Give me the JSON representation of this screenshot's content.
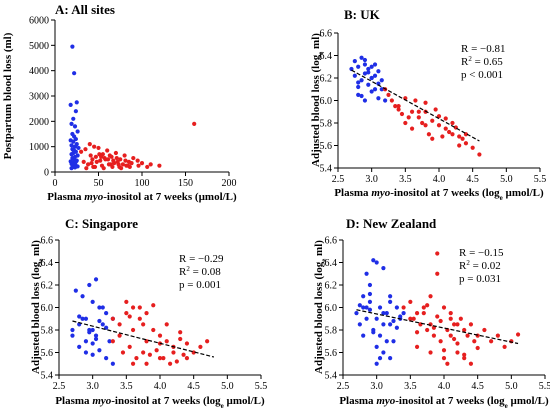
{
  "colors": {
    "group_a": "#1f2ee6",
    "group_b": "#e61f1f",
    "fit_line": "#000000"
  },
  "chart_data": [
    {
      "type": "scatter",
      "title": "A: All sites",
      "xlabel": "Plasma myo-inositol at 7 weeks (µmol/L)",
      "xlabel_parts": [
        "Plasma ",
        "myo",
        "-inositol",
        " at 7 weeks (µmol/L)"
      ],
      "ylabel": "Postpartum blood loss (ml)",
      "ylabel_parts": [
        "Postpartum blood loss (ml)"
      ],
      "xlim": [
        0,
        200
      ],
      "ylim": [
        0,
        6000
      ],
      "xticks": [
        "0",
        "50",
        "100",
        "150",
        "200"
      ],
      "yticks": [
        "0",
        "1000",
        "2000",
        "3000",
        "4000",
        "5000",
        "6000"
      ],
      "stats": [],
      "fit": null,
      "series": [
        {
          "color": "blue",
          "x": [
            20,
            22,
            18,
            25,
            24,
            21,
            19,
            23,
            26,
            20,
            22,
            24,
            18,
            21,
            25,
            19,
            23,
            27,
            20,
            22,
            24,
            21,
            19,
            26,
            23,
            20,
            22,
            25,
            18,
            24,
            21,
            23,
            19,
            22,
            20,
            24,
            26,
            21,
            23,
            19
          ],
          "y": [
            4950,
            3900,
            2650,
            2750,
            2400,
            2100,
            1900,
            1800,
            1600,
            1500,
            1400,
            1300,
            1250,
            1200,
            1100,
            1050,
            1000,
            950,
            900,
            850,
            800,
            750,
            700,
            650,
            600,
            550,
            500,
            450,
            420,
            400,
            380,
            350,
            320,
            300,
            280,
            250,
            220,
            200,
            180,
            150
          ]
        },
        {
          "color": "red",
          "x": [
            30,
            35,
            40,
            45,
            50,
            55,
            60,
            65,
            70,
            75,
            80,
            85,
            90,
            95,
            100,
            110,
            120,
            160,
            38,
            42,
            48,
            52,
            58,
            62,
            68,
            72,
            78,
            82,
            88,
            44,
            54,
            64,
            74,
            84,
            47,
            57,
            67,
            36,
            46,
            56,
            66,
            76,
            86,
            96,
            106,
            41,
            51,
            61,
            71,
            81,
            33,
            43,
            53,
            63,
            73
          ],
          "y": [
            800,
            900,
            1100,
            1000,
            950,
            700,
            850,
            600,
            750,
            500,
            650,
            400,
            550,
            450,
            350,
            300,
            250,
            1900,
            300,
            350,
            400,
            450,
            500,
            300,
            350,
            400,
            300,
            250,
            350,
            200,
            250,
            300,
            200,
            250,
            600,
            550,
            450,
            150,
            200,
            150,
            200,
            150,
            200,
            250,
            200,
            650,
            700,
            500,
            550,
            450,
            400,
            500,
            600,
            650,
            300
          ]
        }
      ]
    },
    {
      "type": "scatter",
      "title": "B: UK",
      "xlabel": "Plasma myo-inositol at 7 weeks (loge µmol/L)",
      "xlabel_parts": [
        "Plasma ",
        "myo",
        "-inositol",
        " at 7 weeks (log",
        "e",
        " µmol/L)"
      ],
      "ylabel": "Adjusted blood loss (loge ml)",
      "ylabel_parts": [
        "Adjusted blood loss (log",
        "e",
        " ml)"
      ],
      "xlim": [
        2.5,
        5.5
      ],
      "ylim": [
        5.4,
        6.6
      ],
      "xticks": [
        "2.5",
        "3.0",
        "3.5",
        "4.0",
        "4.5",
        "5.0",
        "5.5"
      ],
      "yticks": [
        "5.4",
        "5.6",
        "5.8",
        "6.0",
        "6.2",
        "6.4",
        "6.6"
      ],
      "stats": [
        "R = −0.81",
        "R2 = 0.65",
        "p < 0.001"
      ],
      "fit": {
        "x": [
          2.7,
          4.6
        ],
        "y": [
          6.27,
          5.64
        ]
      },
      "series": [
        {
          "color": "blue",
          "x": [
            2.7,
            2.75,
            2.8,
            2.85,
            2.9,
            2.95,
            3.0,
            3.05,
            3.1,
            3.15,
            2.8,
            2.9,
            3.0,
            3.1,
            2.85,
            2.95,
            3.05,
            2.75,
            2.8,
            2.9,
            3.0,
            2.95,
            3.1,
            3.15,
            2.85,
            3.05,
            2.9,
            3.0,
            2.8,
            3.2
          ],
          "y": [
            6.28,
            6.35,
            6.3,
            6.38,
            6.32,
            6.25,
            6.2,
            6.22,
            6.15,
            6.1,
            6.05,
            6.0,
            6.08,
            6.02,
            6.18,
            6.28,
            6.32,
            6.22,
            6.12,
            6.24,
            6.3,
            6.14,
            6.26,
            6.18,
            6.04,
            6.1,
            6.36,
            6.2,
            6.16,
            6.0
          ]
        },
        {
          "color": "red",
          "x": [
            3.2,
            3.3,
            3.4,
            3.5,
            3.6,
            3.7,
            3.8,
            3.9,
            4.0,
            4.1,
            4.2,
            4.3,
            4.4,
            4.5,
            4.6,
            3.35,
            3.55,
            3.75,
            3.95,
            4.15,
            4.35,
            3.45,
            3.65,
            3.85,
            4.05,
            4.25,
            3.25,
            3.5,
            3.8,
            4.1,
            4.4,
            3.6,
            3.9,
            4.2,
            3.7,
            4.0,
            4.3,
            3.4,
            3.8
          ],
          "y": [
            6.1,
            6.0,
            5.95,
            6.02,
            5.9,
            5.85,
            5.9,
            5.82,
            5.78,
            5.75,
            5.7,
            5.68,
            5.62,
            5.58,
            5.52,
            5.95,
            5.85,
            5.8,
            5.92,
            5.72,
            5.66,
            5.88,
            6.0,
            5.7,
            5.68,
            5.76,
            6.05,
            5.8,
            5.98,
            5.84,
            5.7,
            5.75,
            5.66,
            5.8,
            5.9,
            5.86,
            5.6,
            5.92,
            5.78
          ]
        }
      ]
    },
    {
      "type": "scatter",
      "title": "C: Singapore",
      "xlabel": "Plasma myo-inositol at 7 weeks (loge µmol/L)",
      "xlabel_parts": [
        "Plasma ",
        "myo",
        "-inositol",
        " at 7 weeks (log",
        "e",
        " µmol/L)"
      ],
      "ylabel": "Adjusted blood loss (loge ml)",
      "ylabel_parts": [
        "Adjusted blood loss (log",
        "e",
        " ml)"
      ],
      "xlim": [
        2.5,
        5.5
      ],
      "ylim": [
        5.4,
        6.6
      ],
      "xticks": [
        "2.5",
        "3.0",
        "3.5",
        "4.0",
        "4.5",
        "5.0",
        "5.5"
      ],
      "yticks": [
        "5.4",
        "5.6",
        "5.8",
        "6.0",
        "6.2",
        "6.4",
        "6.6"
      ],
      "stats": [
        "R = −0.29",
        "R2 = 0.08",
        "p = 0.001"
      ],
      "fit": {
        "x": [
          2.7,
          4.8
        ],
        "y": [
          5.88,
          5.56
        ]
      },
      "series": [
        {
          "color": "blue",
          "x": [
            2.7,
            2.8,
            2.9,
            3.0,
            3.1,
            3.2,
            3.3,
            2.75,
            2.85,
            2.95,
            3.05,
            3.15,
            3.25,
            2.8,
            2.9,
            3.0,
            3.1,
            3.2,
            2.85,
            2.95,
            3.05,
            3.15,
            2.9,
            3.0,
            3.1,
            2.7,
            3.3,
            2.8,
            3.0,
            3.2,
            2.95,
            3.05
          ],
          "y": [
            5.8,
            5.85,
            5.9,
            6.05,
            6.0,
            5.95,
            5.9,
            6.15,
            6.1,
            5.8,
            5.75,
            5.85,
            5.7,
            5.65,
            5.6,
            5.58,
            5.62,
            5.55,
            5.9,
            6.2,
            6.25,
            6.0,
            5.7,
            5.8,
            5.88,
            5.75,
            5.5,
            5.92,
            5.68,
            5.82,
            5.78,
            5.72
          ]
        },
        {
          "color": "red",
          "x": [
            3.3,
            3.4,
            3.5,
            3.6,
            3.7,
            3.8,
            3.9,
            4.0,
            4.1,
            4.2,
            4.3,
            4.4,
            4.5,
            4.6,
            4.7,
            3.45,
            3.55,
            3.65,
            3.75,
            3.85,
            3.95,
            4.05,
            4.15,
            4.25,
            4.35,
            3.5,
            3.7,
            3.9,
            4.1,
            4.3,
            3.6,
            3.8,
            4.0,
            4.2,
            3.4,
            3.6,
            3.8,
            4.0,
            4.4,
            3.3,
            3.55,
            3.75
          ],
          "y": [
            5.7,
            5.85,
            5.95,
            6.0,
            5.9,
            5.95,
            5.8,
            5.75,
            5.7,
            5.65,
            5.72,
            5.68,
            5.6,
            5.65,
            5.7,
            5.6,
            5.65,
            5.55,
            5.6,
            5.58,
            5.62,
            5.55,
            5.5,
            5.52,
            5.58,
            6.05,
            6.0,
            6.02,
            5.85,
            5.78,
            5.8,
            5.7,
            5.68,
            5.6,
            5.75,
            5.5,
            5.5,
            5.55,
            5.55,
            5.9,
            5.92,
            5.85
          ]
        }
      ]
    },
    {
      "type": "scatter",
      "title": "D: New Zealand",
      "xlabel": "Plasma myo-inositol at 7 weeks (loge µmol/L)",
      "xlabel_parts": [
        "Plasma ",
        "myo",
        "-inositol",
        " at 7 weeks (log",
        "e",
        " µmol/L)"
      ],
      "ylabel": "Adjusted blood loss (loge ml)",
      "ylabel_parts": [
        "Adjusted blood loss (log",
        "e",
        " ml)"
      ],
      "xlim": [
        2.5,
        5.5
      ],
      "ylim": [
        5.4,
        6.6
      ],
      "xticks": [
        "2.5",
        "3.0",
        "3.5",
        "4.0",
        "4.5",
        "5.0",
        "5.5"
      ],
      "yticks": [
        "5.4",
        "5.6",
        "5.8",
        "6.0",
        "6.2",
        "6.4",
        "6.6"
      ],
      "stats": [
        "R = −0.15",
        "R2 = 0.02",
        "p = 0.031"
      ],
      "fit": {
        "x": [
          2.7,
          5.1
        ],
        "y": [
          5.98,
          5.68
        ]
      },
      "series": [
        {
          "color": "blue",
          "x": [
            2.7,
            2.8,
            2.9,
            3.0,
            3.1,
            3.2,
            3.3,
            3.4,
            2.75,
            2.85,
            2.95,
            3.05,
            3.15,
            3.25,
            3.35,
            2.8,
            2.9,
            3.0,
            3.1,
            3.2,
            3.3,
            2.85,
            2.95,
            3.05,
            3.15,
            2.9,
            3.0,
            3.1,
            2.8,
            3.2,
            2.95,
            3.05,
            3.25,
            2.75,
            3.35,
            3.0,
            2.9,
            3.1,
            3.2,
            2.85
          ],
          "y": [
            5.95,
            6.0,
            6.05,
            6.4,
            6.35,
            6.1,
            6.0,
            5.95,
            5.85,
            5.9,
            5.8,
            5.75,
            5.7,
            5.88,
            5.92,
            6.1,
            6.2,
            5.65,
            5.6,
            5.55,
            5.82,
            6.3,
            6.42,
            6.0,
            5.95,
            5.98,
            5.9,
            5.85,
            5.75,
            6.05,
            5.78,
            5.55,
            5.7,
            6.02,
            5.9,
            5.5,
            6.12,
            5.95,
            5.85,
            6.0
          ]
        },
        {
          "color": "red",
          "x": [
            3.4,
            3.5,
            3.6,
            3.7,
            3.8,
            3.9,
            4.0,
            4.1,
            4.2,
            4.3,
            4.4,
            4.5,
            4.6,
            4.7,
            4.8,
            4.9,
            5.0,
            3.55,
            3.65,
            3.75,
            3.85,
            3.95,
            4.05,
            4.15,
            4.25,
            4.35,
            4.45,
            3.6,
            3.8,
            4.0,
            4.2,
            4.4,
            3.7,
            3.9,
            4.1,
            4.3,
            3.5,
            3.8,
            4.0,
            4.2,
            3.6,
            3.9,
            4.1,
            4.3,
            4.5,
            3.75,
            3.95,
            4.15,
            3.85,
            4.05,
            5.1
          ],
          "y": [
            6.0,
            6.05,
            5.95,
            6.0,
            6.1,
            6.3,
            6.0,
            5.9,
            5.85,
            5.8,
            5.85,
            5.75,
            5.8,
            5.7,
            5.75,
            5.65,
            5.7,
            5.9,
            5.85,
            5.8,
            5.75,
            5.7,
            5.8,
            5.85,
            5.9,
            5.75,
            5.7,
            5.65,
            5.6,
            5.55,
            5.6,
            5.5,
            5.95,
            6.48,
            5.95,
            5.55,
            5.9,
            5.85,
            5.62,
            5.68,
            5.78,
            5.92,
            5.75,
            5.58,
            5.64,
            6.02,
            5.88,
            5.72,
            5.82,
            5.5,
            5.76
          ]
        }
      ]
    }
  ]
}
